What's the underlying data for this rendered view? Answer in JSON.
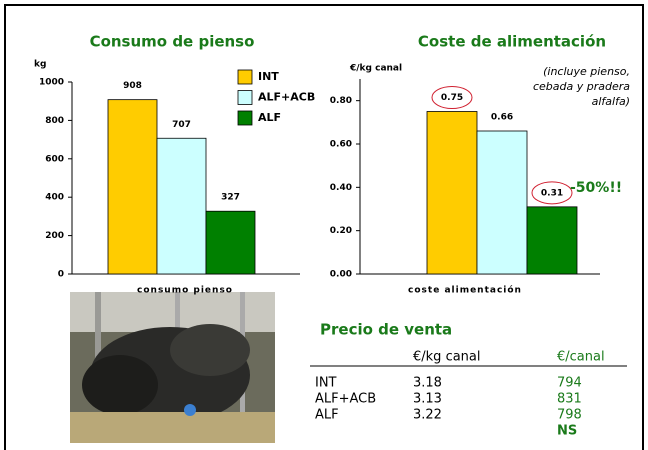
{
  "chart_data": [
    {
      "type": "bar",
      "title": "Consumo de pienso",
      "y_label": "kg",
      "x_label": "consumo pienso",
      "categories": [
        null
      ],
      "series": [
        {
          "name": "INT",
          "color": "#ffcc00",
          "values": [
            908
          ]
        },
        {
          "name": "ALF+ACB",
          "color": "#ccffff",
          "values": [
            707
          ]
        },
        {
          "name": "ALF",
          "color": "#008000",
          "values": [
            327
          ]
        }
      ],
      "ylim": [
        0,
        1000
      ],
      "yticks": [
        0,
        200,
        400,
        600,
        800,
        1000
      ],
      "grid": false,
      "legend": "top-right"
    },
    {
      "type": "bar",
      "title": "Coste de alimentación",
      "y_label": "€/kg canal",
      "x_label": "coste alimentación",
      "note": [
        "(incluye pienso,",
        "cebada y pradera",
        "alfalfa)"
      ],
      "annotation": "-50%!!",
      "categories": [
        null
      ],
      "series": [
        {
          "color": "#ffcc00",
          "values": [
            0.75
          ],
          "circled": true
        },
        {
          "color": "#ccffff",
          "values": [
            0.66
          ],
          "circled": false
        },
        {
          "color": "#008000",
          "values": [
            0.31
          ],
          "circled": true
        }
      ],
      "ylim": [
        0,
        0.9
      ],
      "yticks": [
        {
          "value": 0,
          "label": "0.00"
        },
        {
          "value": 0.2,
          "label": "0.20"
        },
        {
          "value": 0.4,
          "label": "0.40"
        },
        {
          "value": 0.6,
          "label": "0.60"
        },
        {
          "value": 0.8,
          "label": "0.80"
        }
      ],
      "grid": false
    }
  ],
  "sale_price": {
    "title": "Precio de venta",
    "columns": [
      "€/kg canal",
      "€/canal"
    ],
    "rows": [
      [
        "INT",
        "3.18",
        "794"
      ],
      [
        "ALF+ACB",
        "3.13",
        "831"
      ],
      [
        "ALF",
        "3.22",
        "798"
      ]
    ],
    "footnote": "NS"
  }
}
